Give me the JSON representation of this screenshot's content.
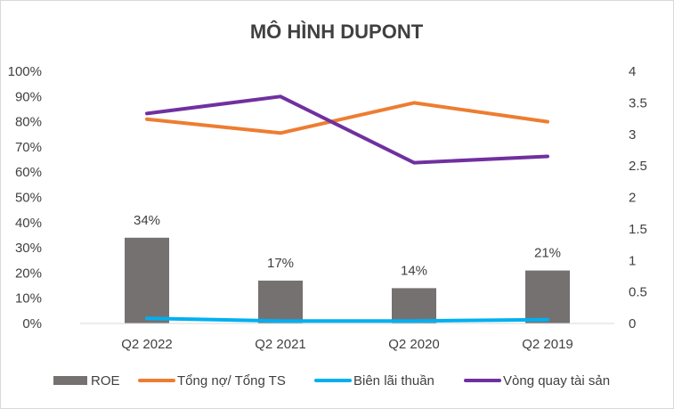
{
  "chart_data": {
    "type": "bar",
    "title": "MÔ HÌNH DUPONT",
    "categories": [
      "Q2 2022",
      "Q2 2021",
      "Q2 2020",
      "Q2 2019"
    ],
    "y_left": {
      "min": 0,
      "max": 1.0,
      "step": 0.1,
      "tick_labels": [
        "0%",
        "10%",
        "20%",
        "30%",
        "40%",
        "50%",
        "60%",
        "70%",
        "80%",
        "90%",
        "100%"
      ]
    },
    "y_right": {
      "min": 0,
      "max": 4,
      "step": 0.5,
      "tick_labels": [
        "0",
        "0.5",
        "1",
        "1.5",
        "2",
        "2.5",
        "3",
        "3.5",
        "4"
      ]
    },
    "grid": false,
    "legend_position": "bottom",
    "series": [
      {
        "name": "ROE",
        "kind": "bar",
        "axis": "left",
        "color": "#767171",
        "values": [
          0.34,
          0.17,
          0.14,
          0.21
        ],
        "data_labels": [
          "34%",
          "17%",
          "14%",
          "21%"
        ]
      },
      {
        "name": "Tổng nợ/ Tổng TS",
        "kind": "line",
        "axis": "left",
        "color": "#ED7D31",
        "values": [
          0.81,
          0.755,
          0.875,
          0.8
        ]
      },
      {
        "name": "Biên lãi thuần",
        "kind": "line",
        "axis": "left",
        "color": "#00B0F0",
        "values": [
          0.02,
          0.01,
          0.01,
          0.015
        ]
      },
      {
        "name": "Vòng quay tài sản",
        "kind": "line",
        "axis": "right",
        "color": "#7030A0",
        "values": [
          3.33,
          3.6,
          2.55,
          2.65
        ]
      }
    ]
  }
}
